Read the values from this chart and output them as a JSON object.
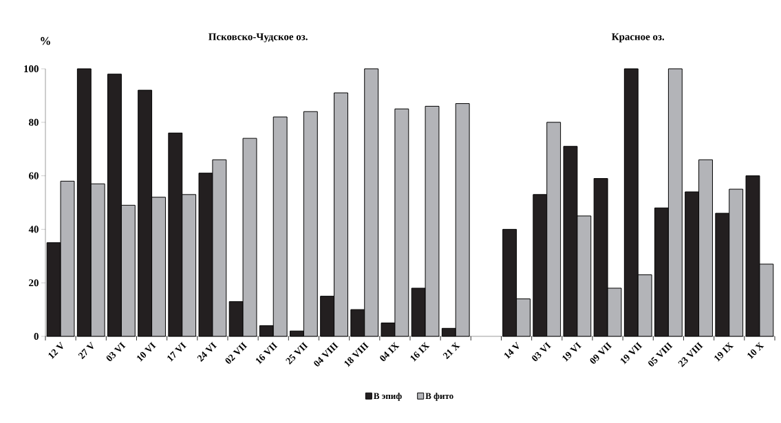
{
  "chart_data": {
    "type": "bar",
    "annotations": [
      "Псковско-Чудское оз.",
      "Красное оз."
    ],
    "ylabel": "%",
    "categories": [
      "12 V",
      "27 V",
      "03 VI",
      "10 VI",
      "17 VI",
      "24 VI",
      "02 VII",
      "16 VII",
      "25 VII",
      "04 VIII",
      "18 VIII",
      "04 IX",
      "16 IX",
      "21 X",
      null,
      "14 V",
      "03 VI",
      "19 VI",
      "09 VII",
      "19 VII",
      "05 VIII",
      "23 VIII",
      "19 IX",
      "10 X"
    ],
    "series": [
      {
        "name": "В эпиф",
        "color": "#231f20",
        "values": [
          35,
          100,
          98,
          92,
          76,
          61,
          13,
          4,
          2,
          15,
          10,
          5,
          18,
          3,
          null,
          40,
          53,
          71,
          59,
          100,
          48,
          54,
          46,
          60
        ]
      },
      {
        "name": "В фито",
        "color": "#b3b4b8",
        "values": [
          58,
          57,
          49,
          52,
          53,
          66,
          74,
          82,
          84,
          91,
          100,
          85,
          86,
          87,
          null,
          14,
          80,
          45,
          18,
          23,
          100,
          66,
          55,
          27
        ]
      }
    ],
    "ylim": [
      0,
      100
    ],
    "yticks": [
      0,
      20,
      40,
      60,
      80,
      100
    ],
    "legend": "bottom"
  }
}
